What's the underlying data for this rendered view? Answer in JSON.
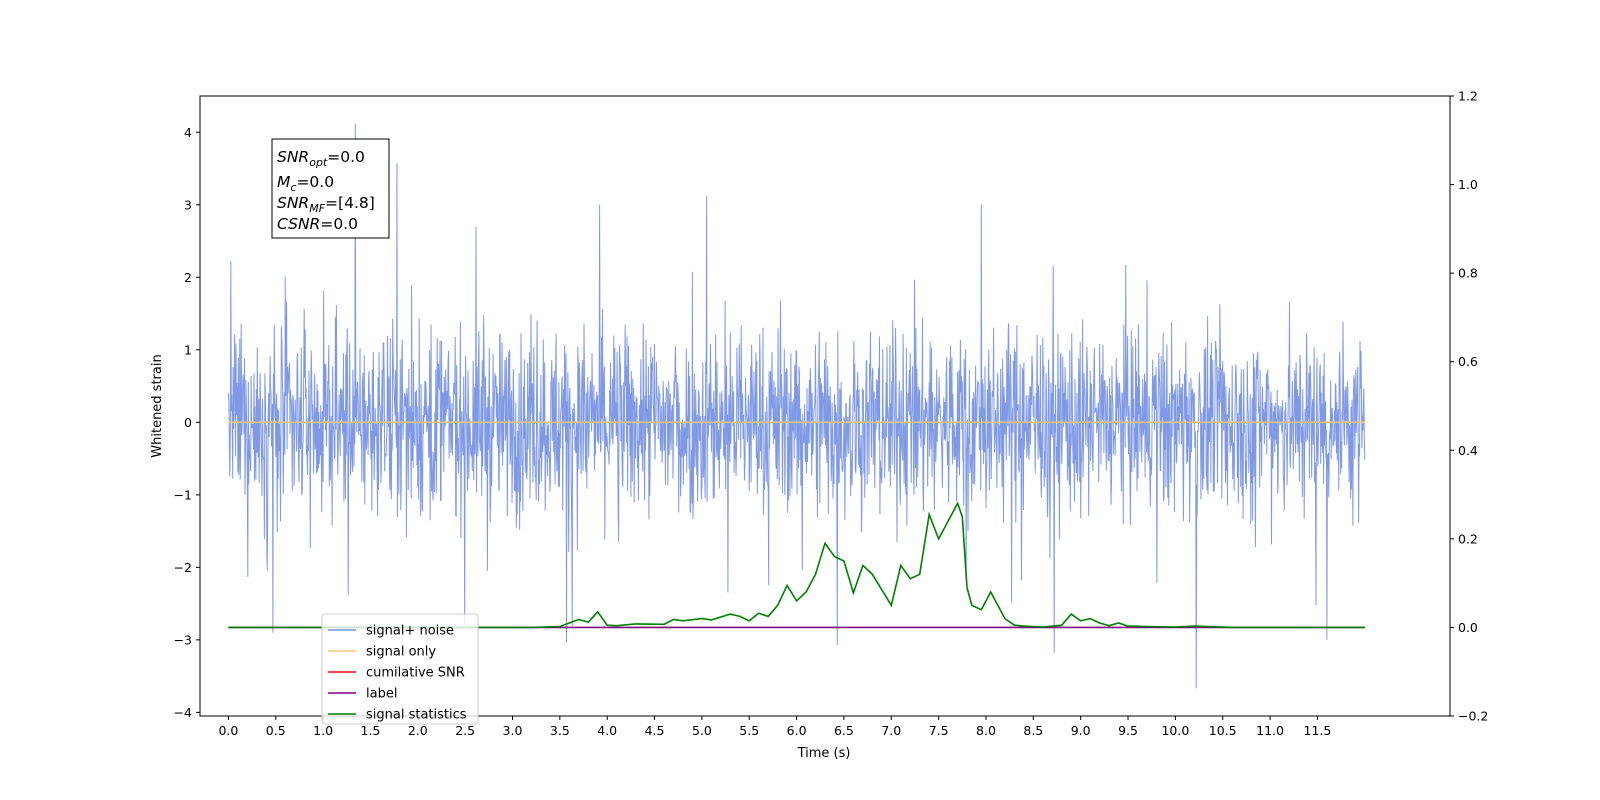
{
  "chart_data": {
    "type": "line",
    "xlabel": "Time (s)",
    "ylabel": "Whitened strain",
    "xlim": [
      -0.3,
      12.9
    ],
    "ylim": [
      -4.05,
      4.5
    ],
    "y2lim": [
      -0.2,
      1.2
    ],
    "x_ticks": [
      0.0,
      0.5,
      1.0,
      1.5,
      2.0,
      2.5,
      3.0,
      3.5,
      4.0,
      4.5,
      5.0,
      5.5,
      6.0,
      6.5,
      7.0,
      7.5,
      8.0,
      8.5,
      9.0,
      9.5,
      10.0,
      10.5,
      11.0,
      11.5
    ],
    "x_tick_labels": [
      "0.0",
      "0.5",
      "1.0",
      "1.5",
      "2.0",
      "2.5",
      "3.0",
      "3.5",
      "4.0",
      "4.5",
      "5.0",
      "5.5",
      "6.0",
      "6.5",
      "7.0",
      "7.5",
      "8.0",
      "8.5",
      "9.0",
      "9.5",
      "10.0",
      "10.5",
      "11.0",
      "11.5"
    ],
    "y_ticks": [
      -4,
      -3,
      -2,
      -1,
      0,
      1,
      2,
      3,
      4
    ],
    "y_tick_labels": [
      "−4",
      "−3",
      "−2",
      "−1",
      "0",
      "1",
      "2",
      "3",
      "4"
    ],
    "y2_ticks": [
      -0.2,
      0.0,
      0.2,
      0.4,
      0.6,
      0.8,
      1.0,
      1.2
    ],
    "y2_tick_labels": [
      "−0.2",
      "0.0",
      "0.2",
      "0.4",
      "0.6",
      "0.8",
      "1.0",
      "1.2"
    ],
    "grid": false,
    "legend_position": "lower-left",
    "noise": {
      "t_start": 0.0,
      "t_end": 12.0,
      "typical_range": [
        -1.6,
        1.7
      ],
      "spikes": [
        [
          1.34,
          4.12
        ],
        [
          1.78,
          3.57
        ],
        [
          5.05,
          3.12
        ],
        [
          7.95,
          3.0
        ],
        [
          10.22,
          -3.67
        ],
        [
          8.72,
          -3.18
        ],
        [
          3.57,
          -3.03
        ],
        [
          6.43,
          -3.07
        ],
        [
          11.6,
          -3.0
        ],
        [
          0.47,
          -2.9
        ]
      ]
    },
    "series": [
      {
        "name": "signal+ noise",
        "axis": "left",
        "color": "#7893e6",
        "kind": "noise-trace"
      },
      {
        "name": "signal only",
        "axis": "left",
        "color": "#f5c77a",
        "x": [
          0.0,
          12.0
        ],
        "y": [
          0.0,
          0.0
        ]
      },
      {
        "name": "cumilative SNR",
        "axis": "right",
        "color": "#e8110f",
        "x": [],
        "y": []
      },
      {
        "name": "label",
        "axis": "right",
        "color": "#800080",
        "x": [
          0.0,
          12.0
        ],
        "y": [
          0.0,
          0.0
        ]
      },
      {
        "name": "signal statistics",
        "axis": "right",
        "color": "#008000",
        "x": [
          0.0,
          3.2,
          3.5,
          3.7,
          3.8,
          3.9,
          4.0,
          4.1,
          4.3,
          4.6,
          4.7,
          4.8,
          5.0,
          5.1,
          5.3,
          5.4,
          5.5,
          5.6,
          5.7,
          5.8,
          5.9,
          6.0,
          6.1,
          6.2,
          6.3,
          6.4,
          6.5,
          6.6,
          6.7,
          6.8,
          6.9,
          7.0,
          7.1,
          7.2,
          7.3,
          7.4,
          7.5,
          7.55,
          7.6,
          7.7,
          7.75,
          7.8,
          7.85,
          7.95,
          8.05,
          8.15,
          8.2,
          8.3,
          8.4,
          8.6,
          8.8,
          8.9,
          9.0,
          9.1,
          9.2,
          9.3,
          9.4,
          9.5,
          9.7,
          10.0,
          10.2,
          10.6,
          12.0
        ],
        "y": [
          0.0,
          0.0,
          0.002,
          0.018,
          0.012,
          0.035,
          0.005,
          0.004,
          0.008,
          0.007,
          0.018,
          0.015,
          0.02,
          0.017,
          0.03,
          0.025,
          0.015,
          0.032,
          0.025,
          0.05,
          0.095,
          0.06,
          0.08,
          0.12,
          0.19,
          0.16,
          0.15,
          0.078,
          0.14,
          0.12,
          0.085,
          0.05,
          0.14,
          0.11,
          0.12,
          0.255,
          0.2,
          0.22,
          0.24,
          0.28,
          0.25,
          0.09,
          0.05,
          0.04,
          0.08,
          0.04,
          0.02,
          0.005,
          0.003,
          0.001,
          0.005,
          0.03,
          0.015,
          0.02,
          0.01,
          0.004,
          0.01,
          0.003,
          0.002,
          0.001,
          0.003,
          0.0,
          0.0
        ]
      }
    ],
    "annotation_lines": [
      "=0.0",
      "=0.0",
      "=[4.8]",
      "=0.0"
    ],
    "annotation_bases": [
      "SNR",
      "M",
      "SNR",
      "CSNR"
    ],
    "annotation_subs": [
      "opt",
      "c",
      "MF",
      ""
    ]
  }
}
